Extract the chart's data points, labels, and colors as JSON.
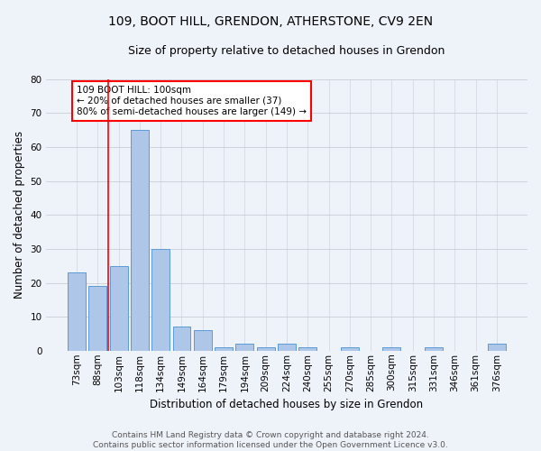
{
  "title": "109, BOOT HILL, GRENDON, ATHERSTONE, CV9 2EN",
  "subtitle": "Size of property relative to detached houses in Grendon",
  "xlabel": "Distribution of detached houses by size in Grendon",
  "ylabel": "Number of detached properties",
  "categories": [
    "73sqm",
    "88sqm",
    "103sqm",
    "118sqm",
    "134sqm",
    "149sqm",
    "164sqm",
    "179sqm",
    "194sqm",
    "209sqm",
    "224sqm",
    "240sqm",
    "255sqm",
    "270sqm",
    "285sqm",
    "300sqm",
    "315sqm",
    "331sqm",
    "346sqm",
    "361sqm",
    "376sqm"
  ],
  "values": [
    23,
    19,
    25,
    65,
    30,
    7,
    6,
    1,
    2,
    1,
    2,
    1,
    0,
    1,
    0,
    1,
    0,
    1,
    0,
    0,
    2
  ],
  "bar_color": "#aec6e8",
  "bar_edge_color": "#5b9bd5",
  "background_color": "#eef2f9",
  "grid_color": "#c8cdd8",
  "red_line_x": 1.5,
  "annotation_text": "109 BOOT HILL: 100sqm\n← 20% of detached houses are smaller (37)\n80% of semi-detached houses are larger (149) →",
  "annotation_box_color": "white",
  "annotation_box_edge_color": "red",
  "ylim": [
    0,
    80
  ],
  "yticks": [
    0,
    10,
    20,
    30,
    40,
    50,
    60,
    70,
    80
  ],
  "footer_text": "Contains HM Land Registry data © Crown copyright and database right 2024.\nContains public sector information licensed under the Open Government Licence v3.0.",
  "title_fontsize": 10,
  "subtitle_fontsize": 9,
  "xlabel_fontsize": 8.5,
  "ylabel_fontsize": 8.5,
  "tick_fontsize": 7.5,
  "annotation_fontsize": 7.5,
  "footer_fontsize": 6.5
}
